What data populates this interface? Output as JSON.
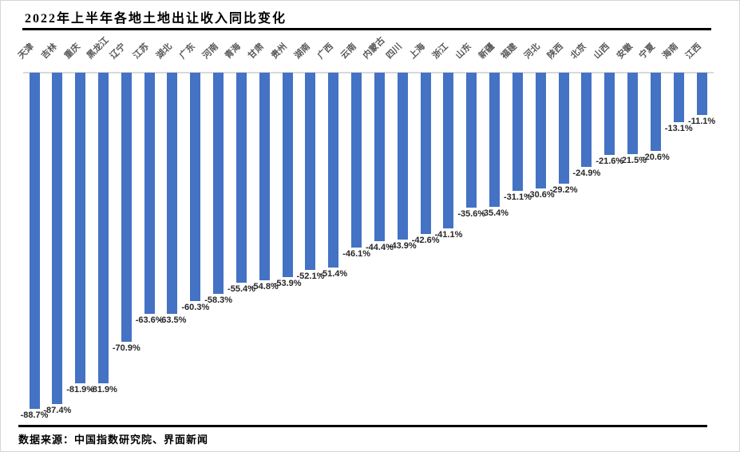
{
  "title": "2022年上半年各地土地出让收入同比变化",
  "footer": {
    "text": "数据来源：中国指数研究院、界面新闻"
  },
  "chart_data": {
    "type": "bar",
    "title": "2022年上半年各地土地出让收入同比变化",
    "categories": [
      "天津",
      "吉林",
      "重庆",
      "黑龙江",
      "辽宁",
      "江苏",
      "湖北",
      "广东",
      "河南",
      "青海",
      "甘肃",
      "贵州",
      "湖南",
      "广西",
      "云南",
      "内蒙古",
      "四川",
      "上海",
      "浙江",
      "山东",
      "新疆",
      "福建",
      "河北",
      "陕西",
      "北京",
      "山西",
      "安徽",
      "宁夏",
      "海南",
      "江西"
    ],
    "values": [
      -88.7,
      -87.4,
      -81.9,
      -81.9,
      -70.9,
      -63.6,
      -63.5,
      -60.3,
      -58.3,
      -55.4,
      -54.8,
      -53.9,
      -52.1,
      -51.4,
      -46.1,
      -44.4,
      -43.9,
      -42.6,
      -41.1,
      -35.6,
      -35.4,
      -31.1,
      -30.6,
      -29.2,
      -24.9,
      -21.6,
      -21.5,
      -20.6,
      -13.1,
      -11.1
    ],
    "unit": "%",
    "xlabel": "",
    "ylabel": "",
    "ylim": [
      -95,
      0
    ],
    "grid": false,
    "legend_position": "none",
    "orientation": "vertical",
    "bar_color": "#4472C4",
    "baseline_color": "#D9D9D9",
    "category_label_color": "#595959",
    "value_label_color": "#262626",
    "value_label_position": "outside-end-below",
    "category_label_rotation_deg": 45,
    "source_note": "数据来源：中国指数研究院、界面新闻"
  }
}
